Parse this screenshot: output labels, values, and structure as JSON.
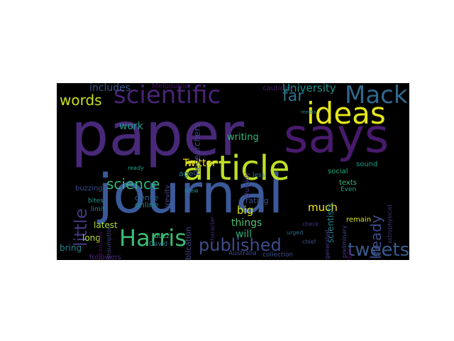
{
  "words": [
    {
      "text": "paper",
      "color": "#482878"
    },
    {
      "text": "journal",
      "color": "#3b5a9a"
    },
    {
      "text": "says",
      "color": "#481a6c"
    },
    {
      "text": "article",
      "color": "#bddf26"
    },
    {
      "text": "ideas",
      "color": "#e4e61a"
    },
    {
      "text": "scientific",
      "color": "#482475"
    },
    {
      "text": "Mack",
      "color": "#31688e"
    },
    {
      "text": "Harris",
      "color": "#3bbb75"
    },
    {
      "text": "published",
      "color": "#3e4c8a"
    },
    {
      "text": "tweets",
      "color": "#365c8d"
    },
    {
      "text": "words",
      "color": "#c8e020"
    },
    {
      "text": "brief",
      "color": "#424086"
    },
    {
      "text": "little",
      "color": "#443983"
    },
    {
      "text": "science",
      "color": "#2fb47c"
    },
    {
      "text": "far",
      "color": "#2c738e"
    },
    {
      "text": "already",
      "color": "#3e4a89"
    },
    {
      "text": "University",
      "color": "#20928c"
    },
    {
      "text": "includes",
      "color": "#38588c"
    },
    {
      "text": "Davenport",
      "color": "#453581"
    },
    {
      "text": "Twitter",
      "color": "#fde725"
    },
    {
      "text": "much",
      "color": "#f1e51d"
    },
    {
      "text": "big",
      "color": "#d2e21b"
    },
    {
      "text": "things",
      "color": "#4ac16d"
    },
    {
      "text": "will",
      "color": "#29af7f"
    },
    {
      "text": "scientists",
      "color": "#26828e"
    },
    {
      "text": "work",
      "color": "#1f9e89"
    },
    {
      "text": "writing",
      "color": "#35b779"
    },
    {
      "text": "Researchers",
      "color": "#3f4889"
    },
    {
      "text": "online",
      "color": "#27808e"
    },
    {
      "text": "latest",
      "color": "#addc30"
    },
    {
      "text": "long",
      "color": "#b5de2b"
    },
    {
      "text": "bring",
      "color": "#25858e"
    },
    {
      "text": "publication",
      "color": "#414487"
    },
    {
      "text": "dense",
      "color": "#33638d"
    },
    {
      "text": "rating",
      "color": "#3b528b"
    },
    {
      "text": "age",
      "color": "#2a788e"
    },
    {
      "text": "brevity",
      "color": "#404688"
    },
    {
      "text": "Quickly",
      "color": "#46337f"
    },
    {
      "text": "accepting",
      "color": "#472d7b"
    },
    {
      "text": "buzzing",
      "color": "#3d4d8a"
    },
    {
      "text": "accepts",
      "color": "#440154"
    },
    {
      "text": "sound",
      "color": "#1e9c89"
    },
    {
      "text": "texts",
      "color": "#3aba76"
    },
    {
      "text": "social",
      "color": "#25ab82"
    },
    {
      "text": "remain",
      "color": "#dde318"
    },
    {
      "text": "Melbourne",
      "color": "#471063"
    },
    {
      "text": "followers",
      "color": "#482576"
    },
    {
      "text": "cautions",
      "color": "#481f70"
    },
    {
      "text": "Australia",
      "color": "#3e4989"
    },
    {
      "text": "collection",
      "color": "#3b518b"
    },
    {
      "text": "less",
      "color": "#2d708e"
    },
    {
      "text": "Even",
      "color": "#20a386"
    },
    {
      "text": "David",
      "color": "#2b748e"
    },
    {
      "text": "buzz",
      "color": "#32b67a"
    },
    {
      "text": "bites",
      "color": "#1f998a"
    },
    {
      "text": "limit",
      "color": "#23888e"
    },
    {
      "text": "ready",
      "color": "#1fa088"
    },
    {
      "text": "drew",
      "color": "#228c8d"
    },
    {
      "text": "character",
      "color": "#472c7a"
    },
    {
      "text": "check",
      "color": "#46307e"
    },
    {
      "text": "generated",
      "color": "#433e85"
    },
    {
      "text": "preliminary",
      "color": "#3f4788"
    },
    {
      "text": "urged",
      "color": "#2e6e8e"
    },
    {
      "text": "chief",
      "color": "#3c4f8a"
    },
    {
      "text": "media",
      "color": "#277f8e"
    },
    {
      "text": "consumption",
      "color": "#414287"
    },
    {
      "text": "comparisons",
      "color": "#460b5e"
    },
    {
      "text": "astrophysicist",
      "color": "#46327e"
    },
    {
      "text": "promised",
      "color": "#481b6d"
    }
  ]
}
